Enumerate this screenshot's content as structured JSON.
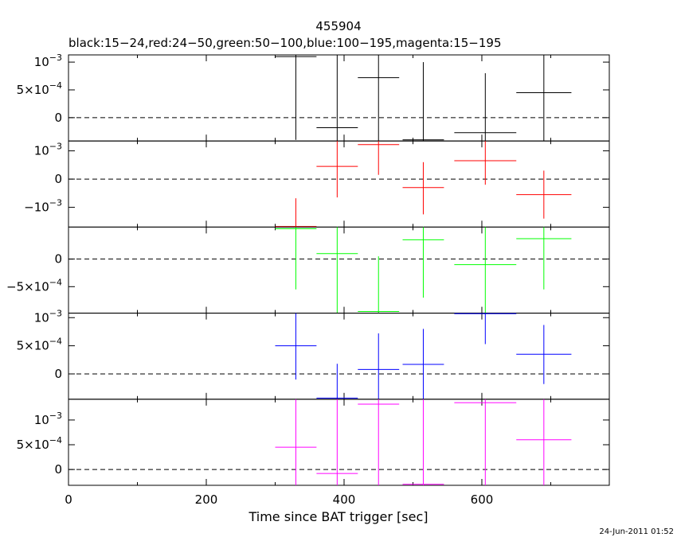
{
  "chart_data": {
    "type": "scatter",
    "title": "455904",
    "subtitle": "black:15−24,red:24−50,green:50−100,blue:100−195,magenta:15−195",
    "xlabel": "Time since BAT trigger [sec]",
    "xlim": [
      0,
      785
    ],
    "x_ticks": [
      "0",
      "200",
      "400",
      "600"
    ],
    "timestamp": "24-Jun-2011 01:52",
    "panels": [
      {
        "name": "black",
        "color": "#000000",
        "ylim": [
          -0.00042,
          0.00113
        ],
        "ticks": [
          {
            "v": 0.001,
            "label": "10",
            "exp": "−3"
          },
          {
            "v": 0.0005,
            "label": "5×10",
            "exp": "−4"
          },
          {
            "v": 0,
            "label": "0"
          }
        ],
        "points": [
          {
            "x": 330,
            "xerr": 30,
            "y": 0.0011,
            "ylo": -0.0004,
            "yhi": 0.00113
          },
          {
            "x": 390,
            "xerr": 30,
            "y": -0.00018,
            "ylo": -0.00042,
            "yhi": 0.00113
          },
          {
            "x": 450,
            "xerr": 30,
            "y": 0.00072,
            "ylo": -0.00042,
            "yhi": 0.00113
          },
          {
            "x": 515,
            "xerr": 30,
            "y": -0.0004,
            "ylo": -0.00042,
            "yhi": 0.001
          },
          {
            "x": 605,
            "xerr": 45,
            "y": -0.00027,
            "ylo": -0.00042,
            "yhi": 0.0008
          },
          {
            "x": 690,
            "xerr": 40,
            "y": 0.00045,
            "ylo": -0.00042,
            "yhi": 0.00113
          }
        ]
      },
      {
        "name": "red",
        "color": "#ff0000",
        "ylim": [
          -0.0017,
          0.00135
        ],
        "ticks": [
          {
            "v": 0.001,
            "label": "10",
            "exp": "−3"
          },
          {
            "v": 0,
            "label": "0"
          },
          {
            "v": -0.001,
            "label": "−10",
            "exp": "−3"
          }
        ],
        "points": [
          {
            "x": 330,
            "xerr": 30,
            "y": -0.00168,
            "ylo": -0.0017,
            "yhi": -0.00068
          },
          {
            "x": 390,
            "xerr": 30,
            "y": 0.00045,
            "ylo": -0.00065,
            "yhi": 0.00135
          },
          {
            "x": 450,
            "xerr": 30,
            "y": 0.00122,
            "ylo": 0.00015,
            "yhi": 0.00135
          },
          {
            "x": 515,
            "xerr": 30,
            "y": -0.0003,
            "ylo": -0.00125,
            "yhi": 0.0006
          },
          {
            "x": 605,
            "xerr": 45,
            "y": 0.00065,
            "ylo": -0.0002,
            "yhi": 0.00135
          },
          {
            "x": 690,
            "xerr": 40,
            "y": -0.00055,
            "ylo": -0.0014,
            "yhi": 0.0003
          }
        ]
      },
      {
        "name": "green",
        "color": "#00ff00",
        "ylim": [
          -0.00098,
          0.00058
        ],
        "ticks": [
          {
            "v": 0,
            "label": "0"
          },
          {
            "v": -0.0005,
            "label": "−5×10",
            "exp": "−4"
          }
        ],
        "points": [
          {
            "x": 330,
            "xerr": 30,
            "y": 0.00055,
            "ylo": -0.00055,
            "yhi": 0.00058
          },
          {
            "x": 390,
            "xerr": 30,
            "y": 0.0001,
            "ylo": -0.00098,
            "yhi": 0.00058
          },
          {
            "x": 450,
            "xerr": 30,
            "y": -0.00095,
            "ylo": -0.00098,
            "yhi": 5e-05
          },
          {
            "x": 515,
            "xerr": 30,
            "y": 0.00035,
            "ylo": -0.0007,
            "yhi": 0.00058
          },
          {
            "x": 605,
            "xerr": 45,
            "y": -0.0001,
            "ylo": -0.00098,
            "yhi": 0.00058
          },
          {
            "x": 690,
            "xerr": 40,
            "y": 0.00037,
            "ylo": -0.00055,
            "yhi": 0.00058
          }
        ]
      },
      {
        "name": "blue",
        "color": "#0000ff",
        "ylim": [
          -0.00045,
          0.00108
        ],
        "ticks": [
          {
            "v": 0.001,
            "label": "10",
            "exp": "−3"
          },
          {
            "v": 0.0005,
            "label": "5×10",
            "exp": "−4"
          },
          {
            "v": 0,
            "label": "0"
          }
        ],
        "points": [
          {
            "x": 330,
            "xerr": 30,
            "y": 0.0005,
            "ylo": -0.0001,
            "yhi": 0.00108
          },
          {
            "x": 390,
            "xerr": 30,
            "y": -0.00043,
            "ylo": -0.00045,
            "yhi": 0.00018
          },
          {
            "x": 450,
            "xerr": 30,
            "y": 8e-05,
            "ylo": -0.00045,
            "yhi": 0.00072
          },
          {
            "x": 515,
            "xerr": 30,
            "y": 0.00017,
            "ylo": -0.00045,
            "yhi": 0.0008
          },
          {
            "x": 605,
            "xerr": 45,
            "y": 0.00107,
            "ylo": 0.00053,
            "yhi": 0.00108
          },
          {
            "x": 690,
            "xerr": 40,
            "y": 0.00035,
            "ylo": -0.00018,
            "yhi": 0.00087
          }
        ]
      },
      {
        "name": "magenta",
        "color": "#ff00ff",
        "ylim": [
          -0.00032,
          0.00142
        ],
        "ticks": [
          {
            "v": 0.001,
            "label": "10",
            "exp": "−3"
          },
          {
            "v": 0.0005,
            "label": "5×10",
            "exp": "−4"
          },
          {
            "v": 0,
            "label": "0"
          }
        ],
        "points": [
          {
            "x": 330,
            "xerr": 30,
            "y": 0.00045,
            "ylo": -0.00032,
            "yhi": 0.00142
          },
          {
            "x": 390,
            "xerr": 30,
            "y": -8e-05,
            "ylo": -0.00032,
            "yhi": 0.00142
          },
          {
            "x": 450,
            "xerr": 30,
            "y": 0.00132,
            "ylo": -0.00032,
            "yhi": 0.00142
          },
          {
            "x": 515,
            "xerr": 30,
            "y": -0.0003,
            "ylo": -0.00032,
            "yhi": 0.00142
          },
          {
            "x": 605,
            "xerr": 45,
            "y": 0.00135,
            "ylo": -0.00032,
            "yhi": 0.00142
          },
          {
            "x": 690,
            "xerr": 40,
            "y": 0.0006,
            "ylo": -0.00032,
            "yhi": 0.00142
          }
        ]
      }
    ]
  }
}
